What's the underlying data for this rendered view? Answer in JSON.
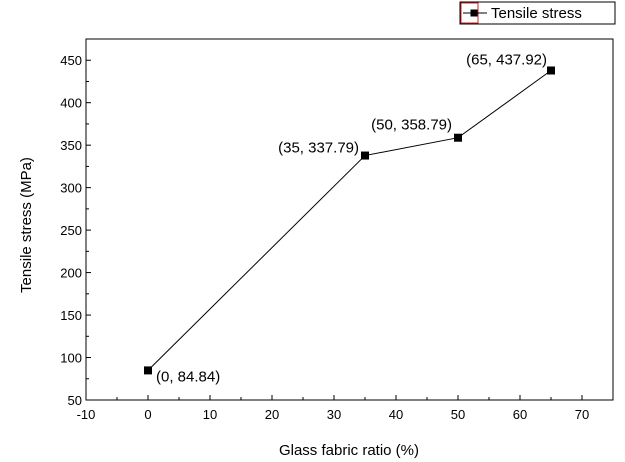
{
  "chart_data": {
    "type": "line",
    "xlabel": "Glass fabric ratio (%)",
    "ylabel": "Tensile stress (MPa)",
    "xlim": [
      -10,
      75
    ],
    "ylim": [
      50,
      475
    ],
    "xticks": [
      -10,
      0,
      10,
      20,
      30,
      40,
      50,
      60,
      70
    ],
    "yticks": [
      50,
      100,
      150,
      200,
      250,
      300,
      350,
      400,
      450
    ],
    "legend_placement": "top-right",
    "grid": false,
    "series": [
      {
        "name": "Tensile stress",
        "color": "#000000",
        "marker": "square",
        "x": [
          0,
          35,
          50,
          65
        ],
        "y": [
          84.84,
          337.79,
          358.79,
          437.92
        ],
        "labels": [
          "(0, 84.84)",
          "(35, 337.79)",
          "(50, 358.79)",
          "(65, 437.92)"
        ]
      }
    ]
  }
}
